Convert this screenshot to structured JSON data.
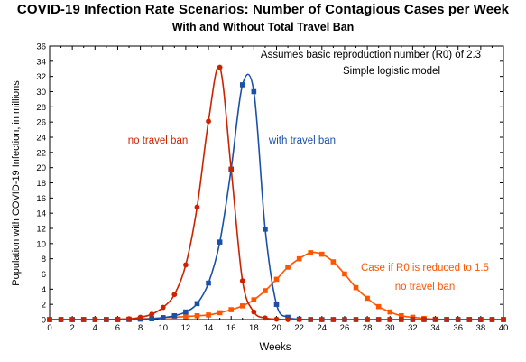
{
  "title": "COVID-19 Infection Rate Scenarios:  Number of Contagious Cases per Week",
  "subtitle": "With and Without Total Travel Ban",
  "annotations": [
    {
      "text": "Assumes basic reproduction number (R0) of 2.3",
      "color": "#000000"
    },
    {
      "text": "Simple logistic model",
      "color": "#000000"
    }
  ],
  "chart_data": {
    "type": "line",
    "xlabel": "Weeks",
    "ylabel": "Population with COVID-19 Infection, in millions",
    "xlim": [
      0,
      40
    ],
    "ylim": [
      0,
      36
    ],
    "xticks": [
      0,
      2,
      4,
      6,
      8,
      10,
      12,
      14,
      16,
      18,
      20,
      22,
      24,
      26,
      28,
      30,
      32,
      34,
      36,
      38,
      40
    ],
    "yticks": [
      0,
      2,
      4,
      6,
      8,
      10,
      12,
      14,
      16,
      18,
      20,
      22,
      24,
      26,
      28,
      30,
      32,
      34,
      36
    ],
    "grid": false,
    "legend": "none",
    "series": [
      {
        "name": "no travel ban",
        "label_lines": [
          "no travel ban"
        ],
        "color": "#cc2200",
        "marker": "circle",
        "x": [
          0,
          1,
          2,
          3,
          4,
          5,
          6,
          7,
          8,
          9,
          10,
          11,
          12,
          13,
          14,
          15,
          16,
          17,
          18,
          19,
          20,
          21,
          22,
          23,
          24,
          25,
          26,
          27,
          28,
          29,
          30,
          31,
          32,
          33,
          34,
          35,
          36,
          37,
          38,
          39,
          40
        ],
        "y": [
          0,
          0,
          0,
          0,
          0,
          0,
          0.05,
          0.1,
          0.3,
          0.7,
          1.6,
          3.3,
          7.2,
          14.8,
          26.1,
          33.2,
          19.8,
          5.1,
          1.0,
          0.2,
          0.05,
          0,
          0,
          0,
          0,
          0,
          0,
          0,
          0,
          0,
          0,
          0,
          0,
          0,
          0,
          0,
          0,
          0,
          0,
          0,
          0
        ]
      },
      {
        "name": "with travel ban",
        "label_lines": [
          "with travel ban"
        ],
        "color": "#1a50a8",
        "marker": "square",
        "x": [
          0,
          1,
          2,
          3,
          4,
          5,
          6,
          7,
          8,
          9,
          10,
          11,
          12,
          13,
          14,
          15,
          16,
          17,
          18,
          19,
          20,
          21,
          22,
          23,
          24,
          25,
          26,
          27,
          28,
          29,
          30,
          31,
          32,
          33,
          34,
          35,
          36,
          37,
          38,
          39,
          40
        ],
        "y": [
          0,
          0,
          0,
          0,
          0,
          0,
          0,
          0,
          0.05,
          0.1,
          0.25,
          0.5,
          1.0,
          2.1,
          4.8,
          10.2,
          19.8,
          30.9,
          30.0,
          11.9,
          2.0,
          0.3,
          0.05,
          0,
          0,
          0,
          0,
          0,
          0,
          0,
          0,
          0,
          0,
          0,
          0,
          0,
          0,
          0,
          0,
          0,
          0
        ]
      },
      {
        "name": "Case if R0 is reduced to 1.5",
        "label_lines": [
          "Case if R0 is reduced to 1.5",
          "no travel ban"
        ],
        "color": "#ff5500",
        "marker": "square",
        "x": [
          0,
          1,
          2,
          3,
          4,
          5,
          6,
          7,
          8,
          9,
          10,
          11,
          12,
          13,
          14,
          15,
          16,
          17,
          18,
          19,
          20,
          21,
          22,
          23,
          24,
          25,
          26,
          27,
          28,
          29,
          30,
          31,
          32,
          33,
          34,
          35,
          36,
          37,
          38,
          39,
          40
        ],
        "y": [
          0,
          0,
          0,
          0,
          0,
          0,
          0,
          0.05,
          0.1,
          0.15,
          0.25,
          0.3,
          0.4,
          0.5,
          0.6,
          0.9,
          1.3,
          1.8,
          2.6,
          3.8,
          5.3,
          6.9,
          8.0,
          8.8,
          8.6,
          7.6,
          6.0,
          4.2,
          2.8,
          1.7,
          1.0,
          0.5,
          0.3,
          0.15,
          0.05,
          0,
          0,
          0,
          0,
          0,
          0
        ]
      }
    ]
  }
}
